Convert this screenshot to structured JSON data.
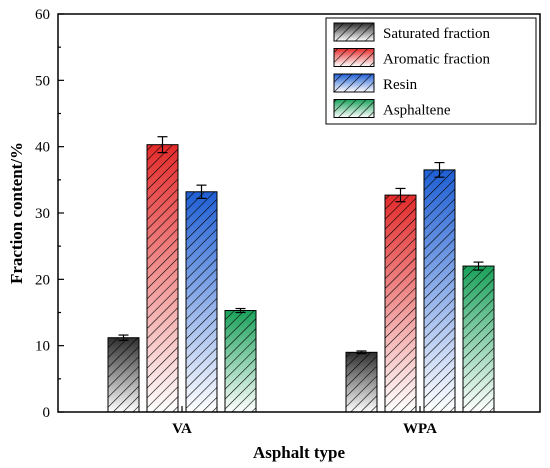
{
  "chart_data": {
    "type": "bar",
    "categories": [
      "VA",
      "WPA"
    ],
    "series": [
      {
        "name": "Saturated fraction",
        "values": [
          11.2,
          9.0
        ],
        "errors": [
          0.4,
          0.2
        ],
        "color": "#2e2e2e",
        "color_light": "#ffffff"
      },
      {
        "name": "Aromatic fraction",
        "values": [
          40.3,
          32.7
        ],
        "errors": [
          1.2,
          1.0
        ],
        "color": "#e32b2b",
        "color_light": "#ffffff"
      },
      {
        "name": "Resin",
        "values": [
          33.2,
          36.5
        ],
        "errors": [
          1.0,
          1.1
        ],
        "color": "#1f5fd4",
        "color_light": "#ffffff"
      },
      {
        "name": "Asphaltene",
        "values": [
          15.3,
          22.0
        ],
        "errors": [
          0.3,
          0.6
        ],
        "color": "#1aa15a",
        "color_light": "#ffffff"
      }
    ],
    "xlabel": "Asphalt type",
    "ylabel": "Fraction content/%",
    "ylim": [
      0,
      60
    ],
    "yticks": [
      0,
      10,
      20,
      30,
      40,
      50,
      60
    ],
    "grid": false,
    "legend_position": "top-right",
    "bar_pattern": "hatched"
  }
}
